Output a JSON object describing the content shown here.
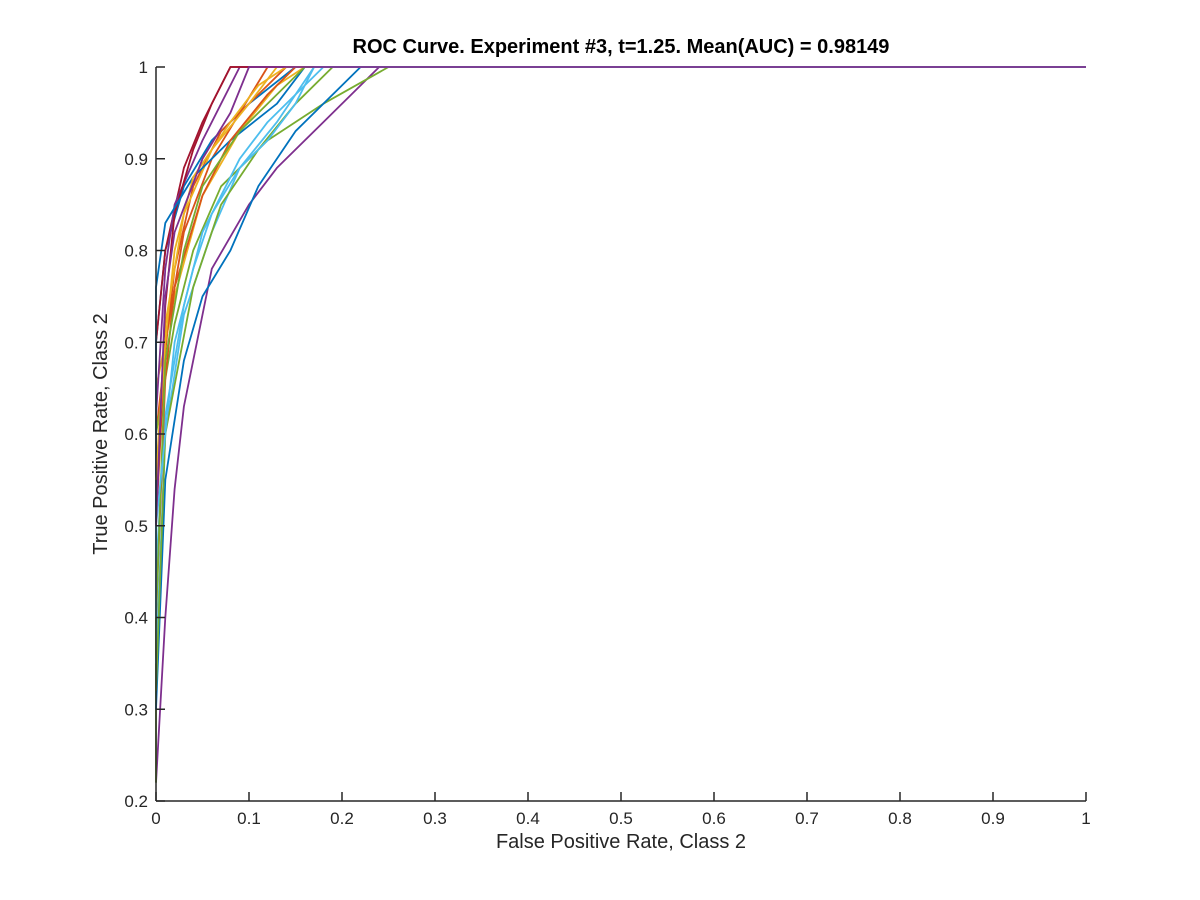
{
  "chart_data": {
    "type": "line",
    "title": "ROC Curve. Experiment #3, t=1.25. Mean(AUC) = 0.98149",
    "xlabel": "False Positive Rate, Class 2",
    "ylabel": "True Positive Rate, Class 2",
    "xlim": [
      0,
      1
    ],
    "ylim": [
      0.2,
      1
    ],
    "xticks": [
      0,
      0.1,
      0.2,
      0.3,
      0.4,
      0.5,
      0.6,
      0.7,
      0.8,
      0.9,
      1
    ],
    "xtick_labels": [
      "0",
      "0.1",
      "0.2",
      "0.3",
      "0.4",
      "0.5",
      "0.6",
      "0.7",
      "0.8",
      "0.9",
      "1"
    ],
    "yticks": [
      0.2,
      0.3,
      0.4,
      0.5,
      0.6,
      0.7,
      0.8,
      0.9,
      1
    ],
    "ytick_labels": [
      "0.2",
      "0.3",
      "0.4",
      "0.5",
      "0.6",
      "0.7",
      "0.8",
      "0.9",
      "1"
    ],
    "grid": false,
    "legend": "none",
    "series": [
      {
        "color": "#0072BD",
        "points": [
          [
            0,
            0.3
          ],
          [
            0,
            0.7
          ],
          [
            0.01,
            0.8
          ],
          [
            0.03,
            0.87
          ],
          [
            0.06,
            0.92
          ],
          [
            0.1,
            0.96
          ],
          [
            0.15,
            1
          ],
          [
            1,
            1
          ]
        ]
      },
      {
        "color": "#D95319",
        "points": [
          [
            0,
            0.42
          ],
          [
            0,
            0.6
          ],
          [
            0.02,
            0.78
          ],
          [
            0.04,
            0.87
          ],
          [
            0.07,
            0.93
          ],
          [
            0.11,
            0.97
          ],
          [
            0.14,
            1
          ],
          [
            1,
            1
          ]
        ]
      },
      {
        "color": "#EDB120",
        "points": [
          [
            0,
            0.5
          ],
          [
            0,
            0.65
          ],
          [
            0.02,
            0.75
          ],
          [
            0.05,
            0.86
          ],
          [
            0.09,
            0.93
          ],
          [
            0.13,
            0.98
          ],
          [
            0.16,
            1
          ],
          [
            1,
            1
          ]
        ]
      },
      {
        "color": "#7E2F8E",
        "points": [
          [
            0,
            0.22
          ],
          [
            0.01,
            0.4
          ],
          [
            0.02,
            0.54
          ],
          [
            0.03,
            0.63
          ],
          [
            0.06,
            0.78
          ],
          [
            0.1,
            0.85
          ],
          [
            0.13,
            0.89
          ],
          [
            0.18,
            0.94
          ],
          [
            0.24,
            1
          ],
          [
            1,
            1
          ]
        ]
      },
      {
        "color": "#77AC30",
        "points": [
          [
            0,
            0.22
          ],
          [
            0,
            0.6
          ],
          [
            0.02,
            0.72
          ],
          [
            0.04,
            0.8
          ],
          [
            0.07,
            0.87
          ],
          [
            0.12,
            0.92
          ],
          [
            0.18,
            0.96
          ],
          [
            0.25,
            1
          ],
          [
            1,
            1
          ]
        ]
      },
      {
        "color": "#4DBEEE",
        "points": [
          [
            0,
            0.35
          ],
          [
            0.01,
            0.6
          ],
          [
            0.03,
            0.73
          ],
          [
            0.06,
            0.82
          ],
          [
            0.09,
            0.89
          ],
          [
            0.13,
            0.94
          ],
          [
            0.17,
            1
          ],
          [
            1,
            1
          ]
        ]
      },
      {
        "color": "#A2142F",
        "points": [
          [
            0,
            0.43
          ],
          [
            0,
            0.7
          ],
          [
            0.01,
            0.8
          ],
          [
            0.03,
            0.89
          ],
          [
            0.05,
            0.94
          ],
          [
            0.08,
            1
          ],
          [
            1,
            1
          ]
        ]
      },
      {
        "color": "#0072BD",
        "points": [
          [
            0,
            0.3
          ],
          [
            0.01,
            0.55
          ],
          [
            0.03,
            0.68
          ],
          [
            0.05,
            0.75
          ],
          [
            0.08,
            0.8
          ],
          [
            0.11,
            0.87
          ],
          [
            0.15,
            0.93
          ],
          [
            0.2,
            0.98
          ],
          [
            0.22,
            1
          ],
          [
            1,
            1
          ]
        ]
      },
      {
        "color": "#D95319",
        "points": [
          [
            0,
            0.5
          ],
          [
            0.01,
            0.7
          ],
          [
            0.03,
            0.82
          ],
          [
            0.06,
            0.9
          ],
          [
            0.09,
            0.95
          ],
          [
            0.12,
            1
          ],
          [
            1,
            1
          ]
        ]
      },
      {
        "color": "#EDB120",
        "points": [
          [
            0,
            0.55
          ],
          [
            0.01,
            0.72
          ],
          [
            0.03,
            0.84
          ],
          [
            0.06,
            0.91
          ],
          [
            0.1,
            0.96
          ],
          [
            0.13,
            1
          ],
          [
            1,
            1
          ]
        ]
      },
      {
        "color": "#7E2F8E",
        "points": [
          [
            0,
            0.62
          ],
          [
            0.01,
            0.78
          ],
          [
            0.02,
            0.85
          ],
          [
            0.05,
            0.92
          ],
          [
            0.07,
            0.96
          ],
          [
            0.09,
            1
          ],
          [
            1,
            1
          ]
        ]
      },
      {
        "color": "#77AC30",
        "points": [
          [
            0,
            0.32
          ],
          [
            0.01,
            0.6
          ],
          [
            0.04,
            0.76
          ],
          [
            0.07,
            0.85
          ],
          [
            0.11,
            0.91
          ],
          [
            0.15,
            0.96
          ],
          [
            0.19,
            1
          ],
          [
            1,
            1
          ]
        ]
      },
      {
        "color": "#4DBEEE",
        "points": [
          [
            0,
            0.45
          ],
          [
            0.01,
            0.62
          ],
          [
            0.03,
            0.74
          ],
          [
            0.05,
            0.82
          ],
          [
            0.09,
            0.9
          ],
          [
            0.12,
            0.94
          ],
          [
            0.16,
            0.98
          ],
          [
            0.18,
            1
          ],
          [
            1,
            1
          ]
        ]
      },
      {
        "color": "#A2142F",
        "points": [
          [
            0,
            0.5
          ],
          [
            0.01,
            0.74
          ],
          [
            0.02,
            0.84
          ],
          [
            0.04,
            0.91
          ],
          [
            0.06,
            0.96
          ],
          [
            0.08,
            1
          ],
          [
            1,
            1
          ]
        ]
      },
      {
        "color": "#0072BD",
        "points": [
          [
            0,
            0.45
          ],
          [
            0,
            0.76
          ],
          [
            0.01,
            0.83
          ],
          [
            0.04,
            0.88
          ],
          [
            0.08,
            0.92
          ],
          [
            0.13,
            0.96
          ],
          [
            0.16,
            1
          ],
          [
            1,
            1
          ]
        ]
      },
      {
        "color": "#D95319",
        "points": [
          [
            0,
            0.4
          ],
          [
            0.01,
            0.66
          ],
          [
            0.02,
            0.76
          ],
          [
            0.05,
            0.86
          ],
          [
            0.08,
            0.92
          ],
          [
            0.12,
            0.97
          ],
          [
            0.15,
            1
          ],
          [
            1,
            1
          ]
        ]
      },
      {
        "color": "#EDB120",
        "points": [
          [
            0,
            0.55
          ],
          [
            0.01,
            0.7
          ],
          [
            0.02,
            0.8
          ],
          [
            0.04,
            0.88
          ],
          [
            0.08,
            0.94
          ],
          [
            0.11,
            0.98
          ],
          [
            0.14,
            1
          ],
          [
            1,
            1
          ]
        ]
      },
      {
        "color": "#77AC30",
        "points": [
          [
            0,
            0.4
          ],
          [
            0.01,
            0.68
          ],
          [
            0.03,
            0.8
          ],
          [
            0.05,
            0.87
          ],
          [
            0.09,
            0.93
          ],
          [
            0.13,
            0.97
          ],
          [
            0.16,
            1
          ],
          [
            1,
            1
          ]
        ]
      },
      {
        "color": "#4DBEEE",
        "points": [
          [
            0,
            0.4
          ],
          [
            0,
            0.5
          ],
          [
            0.02,
            0.7
          ],
          [
            0.04,
            0.78
          ],
          [
            0.06,
            0.84
          ],
          [
            0.09,
            0.89
          ],
          [
            0.12,
            0.92
          ],
          [
            0.15,
            0.96
          ],
          [
            0.17,
            1
          ],
          [
            1,
            1
          ]
        ]
      },
      {
        "color": "#7E2F8E",
        "points": [
          [
            0,
            0.5
          ],
          [
            0.01,
            0.75
          ],
          [
            0.02,
            0.82
          ],
          [
            0.05,
            0.9
          ],
          [
            0.08,
            0.95
          ],
          [
            0.1,
            1
          ],
          [
            1,
            1
          ]
        ]
      }
    ]
  }
}
